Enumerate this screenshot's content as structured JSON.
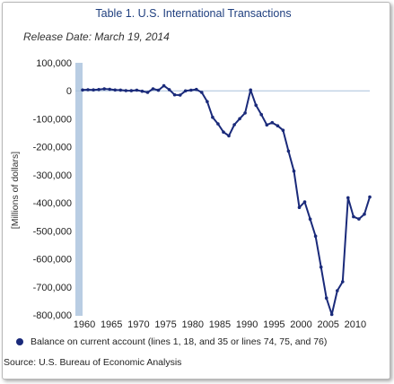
{
  "chart_data": {
    "type": "line",
    "title": "Table 1. U.S. International Transactions",
    "subtitle": "Release Date: March 19, 2014",
    "ylabel": "[Millions of dollars]",
    "xlabel": "",
    "ylim": [
      -800000,
      100000
    ],
    "yticks": [
      100000,
      0,
      -100000,
      -200000,
      -300000,
      -400000,
      -500000,
      -600000,
      -700000,
      -800000
    ],
    "ytick_labels": [
      "100,000",
      "0",
      "-100,000",
      "-200,000",
      "-300,000",
      "-400,000",
      "-500,000",
      "-600,000",
      "-700,000",
      "-800,000"
    ],
    "xlim": [
      1960,
      2013
    ],
    "xticks": [
      1960,
      1965,
      1970,
      1975,
      1980,
      1985,
      1990,
      1995,
      2000,
      2005,
      2010
    ],
    "xtick_labels": [
      "1960",
      "1965",
      "1970",
      "1975",
      "1980",
      "1985",
      "1990",
      "1995",
      "2000",
      "2005",
      "2010"
    ],
    "grid": {
      "horizontal": false,
      "vertical": false,
      "zero_line": true
    },
    "legend_position": "bottom-left",
    "series": [
      {
        "name": "Balance on current account (lines 1, 18, and 35 or lines 74, 75, and 76)",
        "color": "#1a2a7a",
        "x": [
          1960,
          1961,
          1962,
          1963,
          1964,
          1965,
          1966,
          1967,
          1968,
          1969,
          1970,
          1971,
          1972,
          1973,
          1974,
          1975,
          1976,
          1977,
          1978,
          1979,
          1980,
          1981,
          1982,
          1983,
          1984,
          1985,
          1986,
          1987,
          1988,
          1989,
          1990,
          1991,
          1992,
          1993,
          1994,
          1995,
          1996,
          1997,
          1998,
          1999,
          2000,
          2001,
          2002,
          2003,
          2004,
          2005,
          2006,
          2007,
          2008,
          2009,
          2010,
          2011,
          2012,
          2013
        ],
        "values": [
          2824,
          3822,
          3387,
          4414,
          6823,
          5431,
          3031,
          2583,
          611,
          399,
          2331,
          -1433,
          -5795,
          7140,
          1962,
          18116,
          4295,
          -14335,
          -15143,
          -285,
          2317,
          5030,
          -5536,
          -38691,
          -94344,
          -118155,
          -147177,
          -160655,
          -121153,
          -99486,
          -78968,
          2897,
          -51613,
          -84805,
          -121612,
          -113567,
          -124764,
          -140726,
          -215062,
          -286614,
          -416317,
          -396699,
          -457841,
          -518654,
          -629297,
          -739796,
          -798478,
          -713389,
          -681343,
          -381636,
          -449471,
          -457725,
          -440416,
          -379289
        ]
      }
    ]
  },
  "source": "Source: U.S. Bureau of Economic Analysis"
}
